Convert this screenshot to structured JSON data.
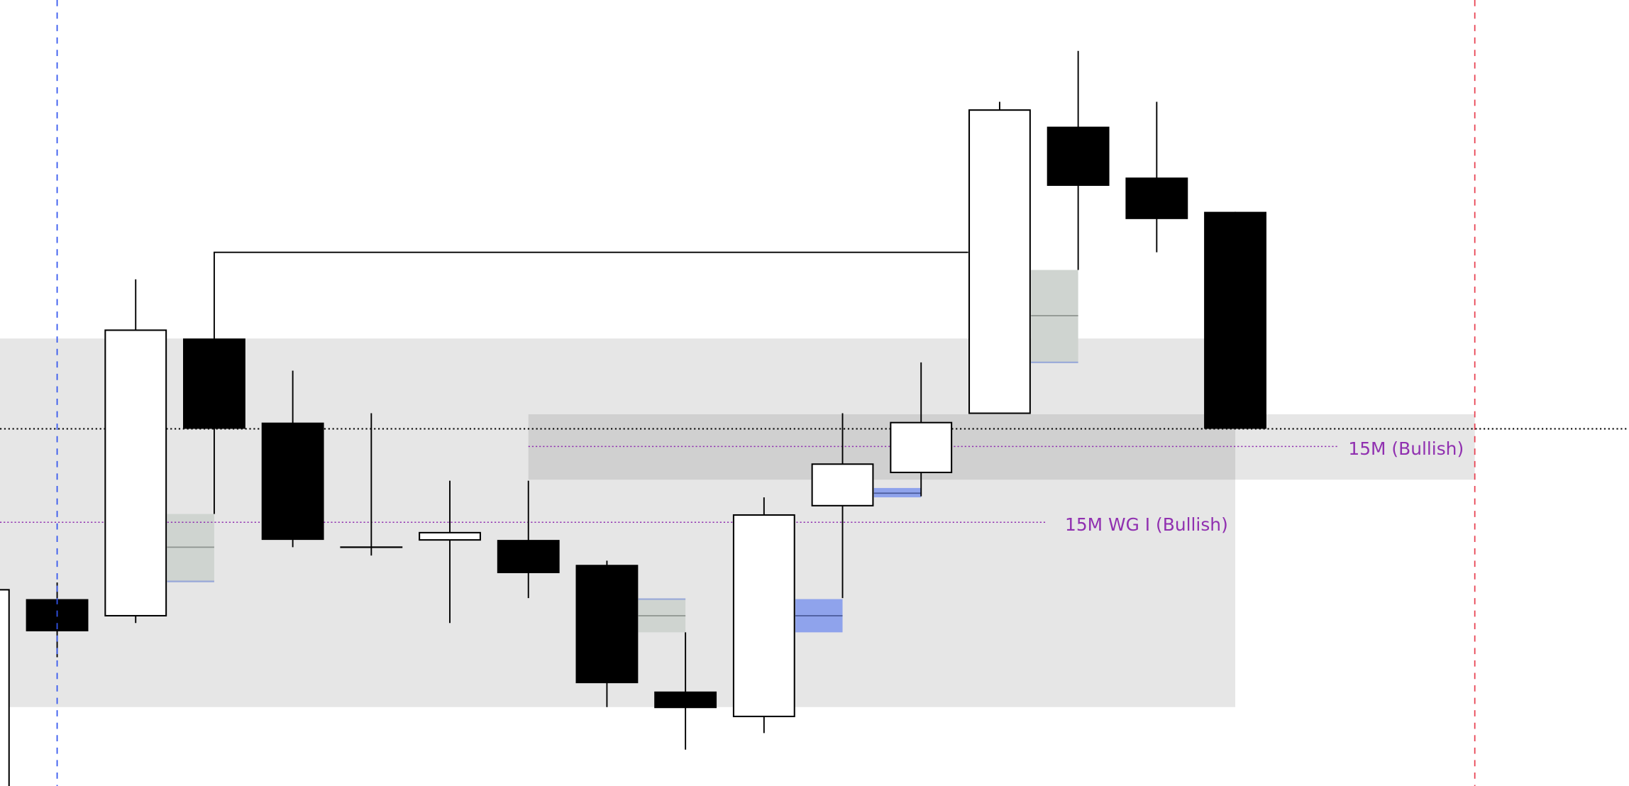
{
  "chart_data": {
    "type": "candlestick",
    "title": "",
    "xlabel": "",
    "ylabel": "",
    "axes_visible": false,
    "grid": false,
    "colors": {
      "bull_body": "#ffffff",
      "bear_body": "#000000",
      "zone": "#e6e6e6",
      "zone_overlap": "#d0d0d0",
      "gap_box": "#cfd4d0",
      "gap_box_blue": "#8fa3ec",
      "purple_level": "#9030b0",
      "blue_vline": "#3355ee",
      "red_vline": "#e84050"
    },
    "candles": [
      {
        "i": 0,
        "open": -20,
        "high": 189,
        "low": -20,
        "close": 189
      },
      {
        "i": 1,
        "open": 180,
        "high": 196,
        "low": 124,
        "close": 149
      },
      {
        "i": 2,
        "open": 164,
        "high": 488,
        "low": 157,
        "close": 439
      },
      {
        "i": 3,
        "open": 431,
        "high": 431,
        "low": 262,
        "close": 344
      },
      {
        "i": 4,
        "open": 350,
        "high": 400,
        "low": 230,
        "close": 237
      },
      {
        "i": 5,
        "open": 230,
        "high": 359,
        "low": 222,
        "close": 230
      },
      {
        "i": 6,
        "open": 237,
        "high": 294,
        "low": 157,
        "close": 244
      },
      {
        "i": 7,
        "open": 237,
        "high": 294,
        "low": 181,
        "close": 205
      },
      {
        "i": 8,
        "open": 213,
        "high": 217,
        "low": 76,
        "close": 99
      },
      {
        "i": 9,
        "open": 91,
        "high": 148,
        "low": 35,
        "close": 75
      },
      {
        "i": 10,
        "open": 67,
        "high": 278,
        "low": 51,
        "close": 261
      },
      {
        "i": 11,
        "open": 270,
        "high": 359,
        "low": 181,
        "close": 310
      },
      {
        "i": 12,
        "open": 302,
        "high": 408,
        "low": 279,
        "close": 350
      },
      {
        "i": 13,
        "open": 359,
        "high": 659,
        "low": 359,
        "close": 651
      },
      {
        "i": 14,
        "open": 635,
        "high": 708,
        "low": 497,
        "close": 578
      },
      {
        "i": 15,
        "open": 586,
        "high": 659,
        "low": 514,
        "close": 546
      },
      {
        "i": 16,
        "open": 553,
        "high": 553,
        "low": 344,
        "close": 344
      }
    ],
    "zones": [
      {
        "from": 0.3,
        "to": 16,
        "low": 76,
        "high": 431,
        "kind": "zone"
      },
      {
        "from": 7,
        "to": 19.05,
        "low": 295,
        "high": 358,
        "kind": "zone"
      }
    ],
    "gap_boxes": [
      {
        "from": 2.4,
        "to": 3,
        "low": 197,
        "high": 262,
        "mid": 230,
        "edge": "low",
        "kind": "gray"
      },
      {
        "from": 8.4,
        "to": 9,
        "low": 148,
        "high": 180,
        "mid": 164,
        "edge": "high",
        "kind": "gray"
      },
      {
        "from": 13.4,
        "to": 14,
        "low": 408,
        "high": 497,
        "mid": 453,
        "edge": "low",
        "kind": "gray"
      },
      {
        "from": 10.4,
        "to": 11,
        "low": 148,
        "high": 180,
        "mid": 164,
        "edge": "none",
        "kind": "blue"
      },
      {
        "from": 11.4,
        "to": 12,
        "low": 278,
        "high": 287,
        "mid": 282,
        "edge": "none",
        "kind": "blue"
      }
    ],
    "levels": [
      {
        "price": 344,
        "from": 0.3,
        "to": 21.5,
        "style": "black-dotted",
        "label": ""
      },
      {
        "price": 327,
        "from": 7,
        "to": 17.3,
        "style": "purple-dotted",
        "label": "15M (Bullish)"
      },
      {
        "price": 254,
        "from": 0.3,
        "to": 13.6,
        "style": "purple-dotted",
        "label": "15M WG I (Bullish)"
      }
    ],
    "connector": {
      "price": 514,
      "from": 3,
      "to": 12.6
    },
    "vlines": [
      {
        "at": 1,
        "style": "blue-dashed"
      },
      {
        "at": 19.05,
        "style": "red-dashed"
      }
    ]
  }
}
